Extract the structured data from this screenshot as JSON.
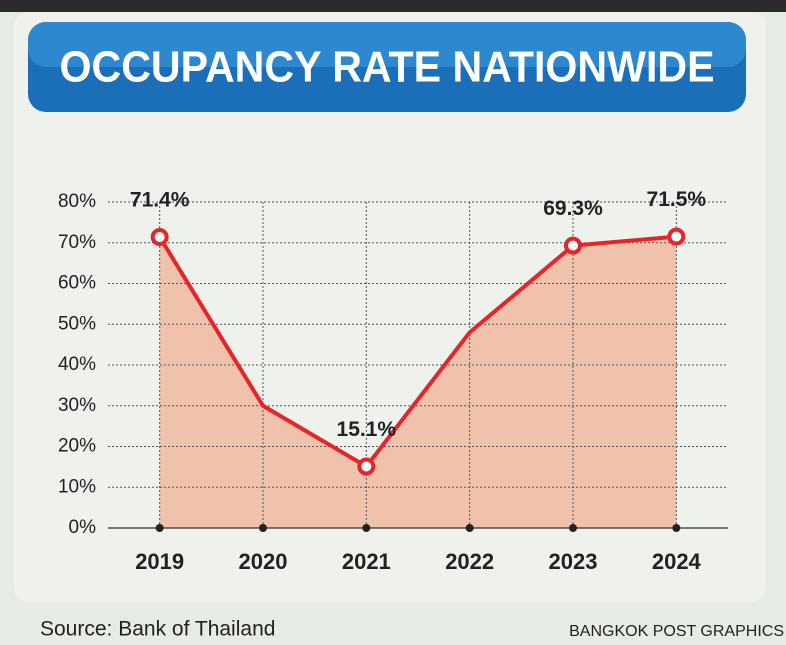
{
  "chart_data": {
    "type": "line",
    "title": "OCCUPANCY RATE NATIONWIDE",
    "categories": [
      "2019",
      "2020",
      "2021",
      "2022",
      "2023",
      "2024"
    ],
    "values": [
      71.4,
      30,
      15.1,
      48,
      69.3,
      71.5
    ],
    "value_labels": [
      "71.4%",
      null,
      "15.1%",
      null,
      "69.3%",
      "71.5%"
    ],
    "color": "#e5252a",
    "area_color": "#f0c2ab",
    "ylim": [
      0,
      80
    ],
    "yticks": [
      {
        "value": 0,
        "label": "0%"
      },
      {
        "value": 10,
        "label": "10%"
      },
      {
        "value": 20,
        "label": "20%"
      },
      {
        "value": 30,
        "label": "30%"
      },
      {
        "value": 40,
        "label": "40%"
      },
      {
        "value": 50,
        "label": "50%"
      },
      {
        "value": 60,
        "label": "60%"
      },
      {
        "value": 70,
        "label": "70%"
      },
      {
        "value": 80,
        "label": "80%"
      }
    ],
    "grid": true,
    "source": "Source: Bank of Thailand",
    "credit": "BANGKOK POST GRAPHICS"
  }
}
